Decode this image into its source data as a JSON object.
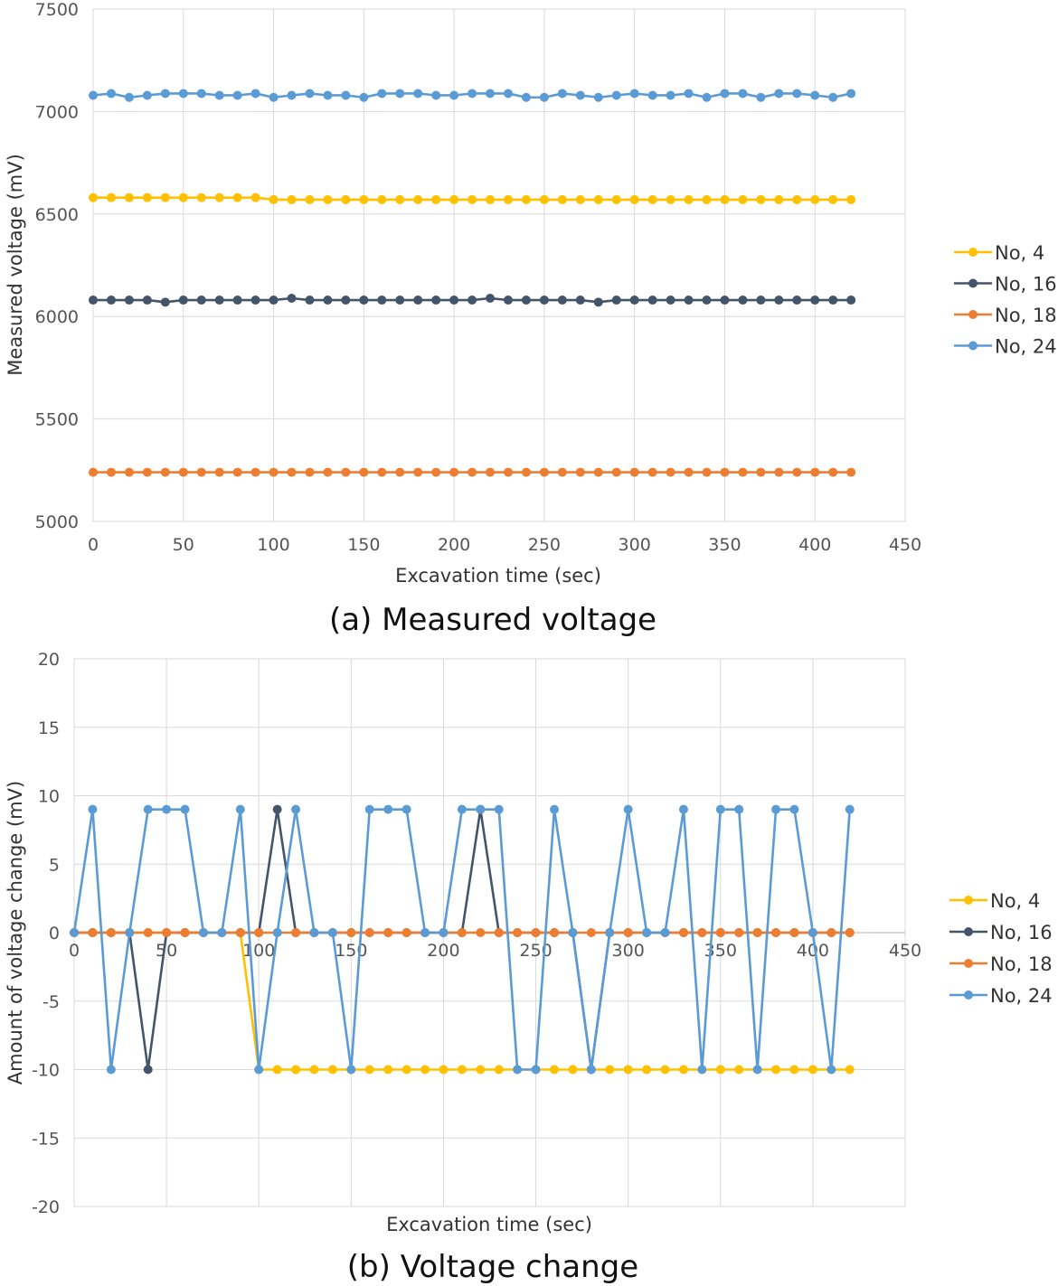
{
  "chart_data": [
    {
      "id": "a",
      "type": "line",
      "caption": "(a) Measured voltage",
      "xlabel": "Excavation time (sec)",
      "ylabel": "Measured voltage (mV)",
      "xlim": [
        0,
        450
      ],
      "ylim": [
        5000,
        7500
      ],
      "xticks": [
        0,
        50,
        100,
        150,
        200,
        250,
        300,
        350,
        400,
        450
      ],
      "yticks": [
        5000,
        5500,
        6000,
        6500,
        7000,
        7500
      ],
      "grid": true,
      "legend_position": "right",
      "x": [
        0,
        10,
        20,
        30,
        40,
        50,
        60,
        70,
        80,
        90,
        100,
        110,
        120,
        130,
        140,
        150,
        160,
        170,
        180,
        190,
        200,
        210,
        220,
        230,
        240,
        250,
        260,
        270,
        280,
        290,
        300,
        310,
        320,
        330,
        340,
        350,
        360,
        370,
        380,
        390,
        400,
        410,
        420
      ],
      "series": [
        {
          "name": "No, 4",
          "color": "#ffc000",
          "values": [
            6580,
            6580,
            6580,
            6580,
            6580,
            6580,
            6580,
            6580,
            6580,
            6580,
            6570,
            6570,
            6570,
            6570,
            6570,
            6570,
            6570,
            6570,
            6570,
            6570,
            6570,
            6570,
            6570,
            6570,
            6570,
            6570,
            6570,
            6570,
            6570,
            6570,
            6570,
            6570,
            6570,
            6570,
            6570,
            6570,
            6570,
            6570,
            6570,
            6570,
            6570,
            6570,
            6570
          ]
        },
        {
          "name": "No, 16",
          "color": "#44546a",
          "values": [
            6080,
            6080,
            6080,
            6080,
            6070,
            6080,
            6080,
            6080,
            6080,
            6080,
            6080,
            6089,
            6080,
            6080,
            6080,
            6080,
            6080,
            6080,
            6080,
            6080,
            6080,
            6080,
            6089,
            6080,
            6080,
            6080,
            6080,
            6080,
            6070,
            6080,
            6080,
            6080,
            6080,
            6080,
            6080,
            6080,
            6080,
            6080,
            6080,
            6080,
            6080,
            6080,
            6080
          ]
        },
        {
          "name": "No, 18",
          "color": "#ed7d31",
          "values": [
            5240,
            5240,
            5240,
            5240,
            5240,
            5240,
            5240,
            5240,
            5240,
            5240,
            5240,
            5240,
            5240,
            5240,
            5240,
            5240,
            5240,
            5240,
            5240,
            5240,
            5240,
            5240,
            5240,
            5240,
            5240,
            5240,
            5240,
            5240,
            5240,
            5240,
            5240,
            5240,
            5240,
            5240,
            5240,
            5240,
            5240,
            5240,
            5240,
            5240,
            5240,
            5240,
            5240
          ]
        },
        {
          "name": "No, 24",
          "color": "#5b9bd5",
          "values": [
            7079,
            7088,
            7069,
            7079,
            7088,
            7088,
            7088,
            7079,
            7079,
            7088,
            7069,
            7079,
            7088,
            7079,
            7079,
            7069,
            7088,
            7088,
            7088,
            7079,
            7079,
            7088,
            7088,
            7088,
            7069,
            7069,
            7088,
            7079,
            7069,
            7079,
            7088,
            7079,
            7079,
            7088,
            7069,
            7088,
            7088,
            7069,
            7088,
            7088,
            7079,
            7069,
            7088
          ]
        }
      ]
    },
    {
      "id": "b",
      "type": "line",
      "caption": "(b) Voltage change",
      "xlabel": "Excavation time (sec)",
      "ylabel": "Amount of voltage change (mV)",
      "xlim": [
        0,
        450
      ],
      "ylim": [
        -20,
        20
      ],
      "xticks": [
        0,
        50,
        100,
        150,
        200,
        250,
        300,
        350,
        400,
        450
      ],
      "yticks": [
        -20,
        -15,
        -10,
        -5,
        0,
        5,
        10,
        15,
        20
      ],
      "grid": true,
      "legend_position": "right",
      "x": [
        0,
        10,
        20,
        30,
        40,
        50,
        60,
        70,
        80,
        90,
        100,
        110,
        120,
        130,
        140,
        150,
        160,
        170,
        180,
        190,
        200,
        210,
        220,
        230,
        240,
        250,
        260,
        270,
        280,
        290,
        300,
        310,
        320,
        330,
        340,
        350,
        360,
        370,
        380,
        390,
        400,
        410,
        420
      ],
      "series": [
        {
          "name": "No, 4",
          "color": "#ffc000",
          "values": [
            0,
            0,
            0,
            0,
            0,
            0,
            0,
            0,
            0,
            0,
            -10,
            -10,
            -10,
            -10,
            -10,
            -10,
            -10,
            -10,
            -10,
            -10,
            -10,
            -10,
            -10,
            -10,
            -10,
            -10,
            -10,
            -10,
            -10,
            -10,
            -10,
            -10,
            -10,
            -10,
            -10,
            -10,
            -10,
            -10,
            -10,
            -10,
            -10,
            -10,
            -10
          ]
        },
        {
          "name": "No, 16",
          "color": "#44546a",
          "values": [
            0,
            0,
            0,
            0,
            -10,
            0,
            0,
            0,
            0,
            0,
            0,
            9,
            0,
            0,
            0,
            0,
            0,
            0,
            0,
            0,
            0,
            0,
            9,
            0,
            0,
            0,
            0,
            0,
            -10,
            0,
            0,
            0,
            0,
            0,
            0,
            0,
            0,
            0,
            0,
            0,
            0,
            0,
            0
          ]
        },
        {
          "name": "No, 18",
          "color": "#ed7d31",
          "values": [
            0,
            0,
            0,
            0,
            0,
            0,
            0,
            0,
            0,
            0,
            0,
            0,
            0,
            0,
            0,
            0,
            0,
            0,
            0,
            0,
            0,
            0,
            0,
            0,
            0,
            0,
            0,
            0,
            0,
            0,
            0,
            0,
            0,
            0,
            0,
            0,
            0,
            0,
            0,
            0,
            0,
            0,
            0
          ]
        },
        {
          "name": "No, 24",
          "color": "#5b9bd5",
          "values": [
            0,
            9,
            -10,
            0,
            9,
            9,
            9,
            0,
            0,
            9,
            -10,
            0,
            9,
            0,
            0,
            -10,
            9,
            9,
            9,
            0,
            0,
            9,
            9,
            9,
            -10,
            -10,
            9,
            0,
            -10,
            0,
            9,
            0,
            0,
            9,
            -10,
            9,
            9,
            -10,
            9,
            9,
            0,
            -10,
            9
          ]
        }
      ]
    }
  ]
}
